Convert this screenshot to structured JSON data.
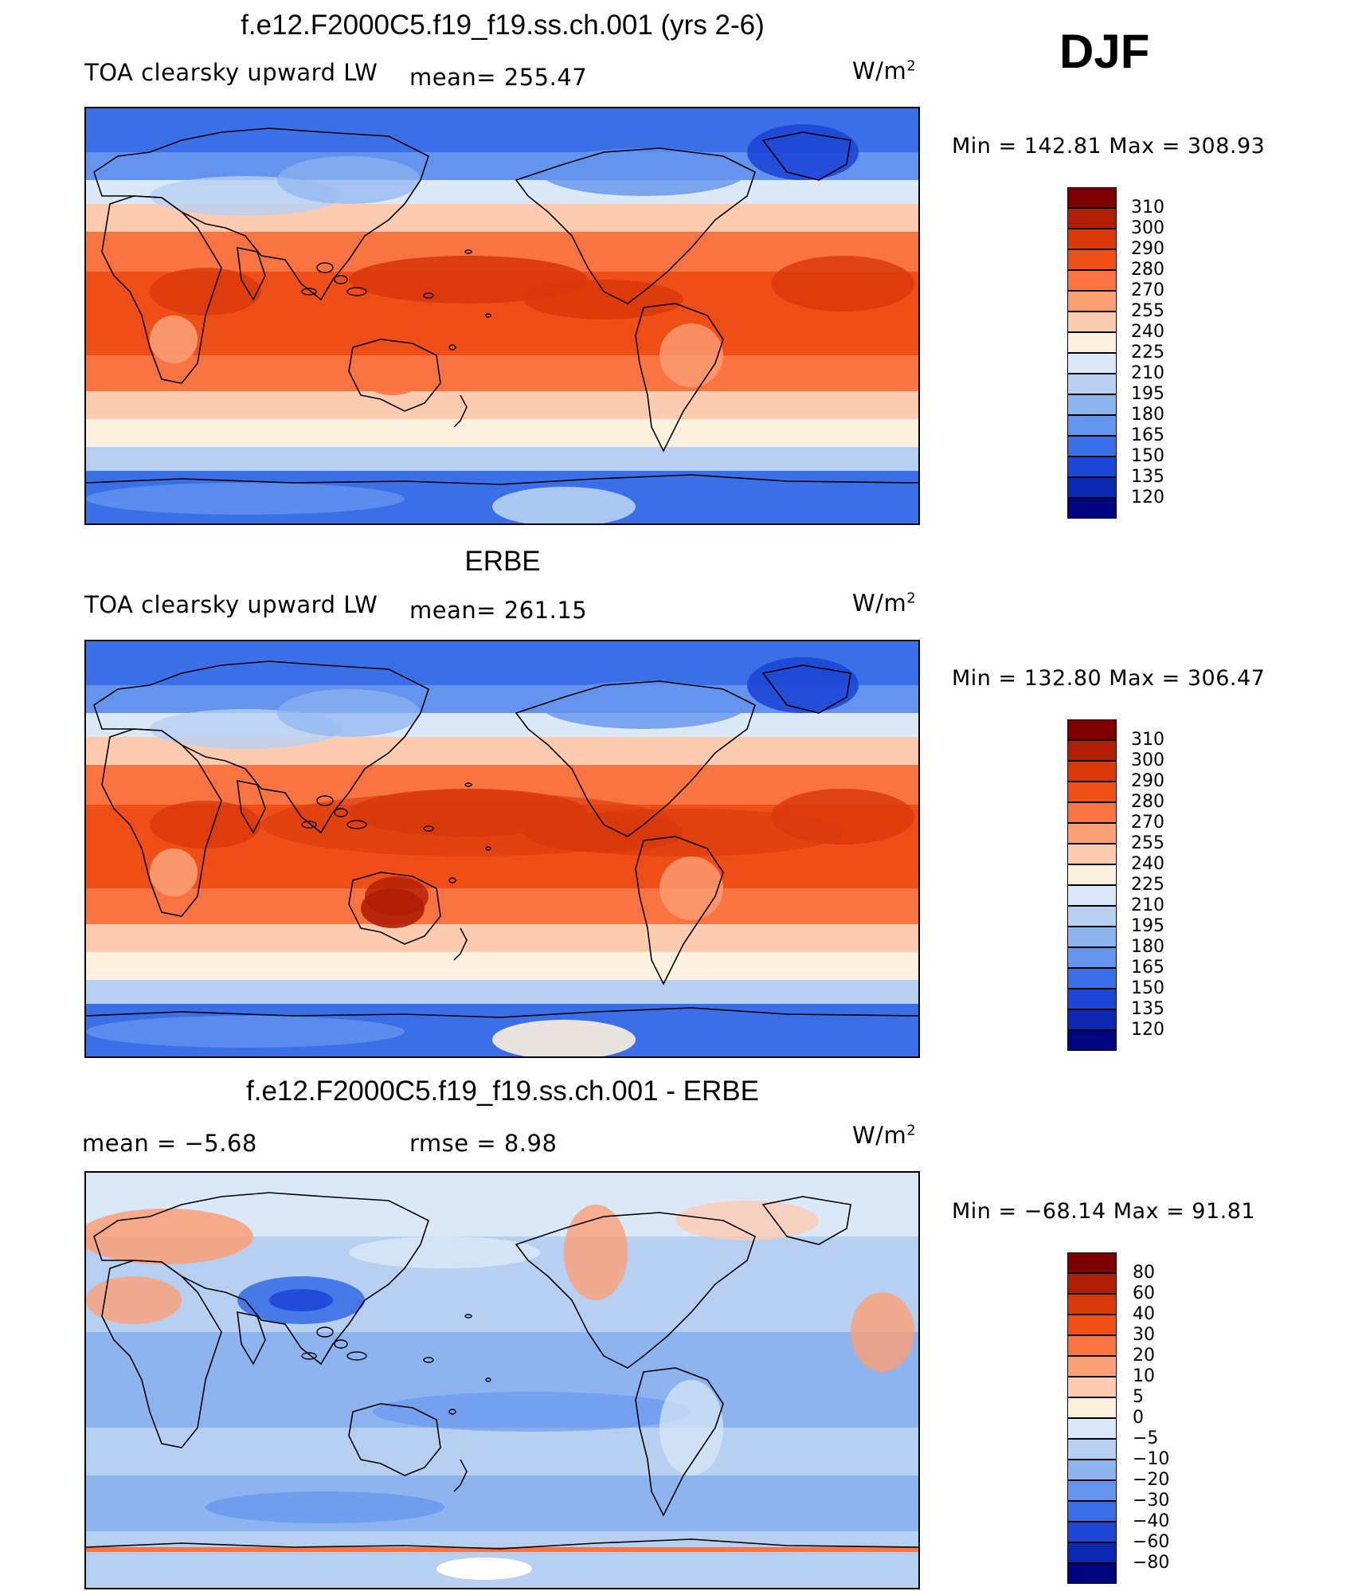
{
  "season": "DJF",
  "panels": [
    {
      "title": "f.e12.F2000C5.f19_f19.ss.ch.001 (yrs 2-6)",
      "left_label": "TOA clearsky upward LW",
      "stat1": "mean= 255.47",
      "units": "W/m",
      "units_sup": "2",
      "minmax": "Min  =  142.81  Max  =  308.93",
      "palette": "abs",
      "map_alt": "model"
    },
    {
      "title": "ERBE",
      "left_label": "TOA clearsky upward LW",
      "stat1": "mean= 261.15",
      "units": "W/m",
      "units_sup": "2",
      "minmax": "Min  =  132.80  Max  =  306.47",
      "palette": "abs",
      "map_alt": "obs"
    },
    {
      "title": "f.e12.F2000C5.f19_f19.ss.ch.001 - ERBE",
      "left_label": "mean =    −5.68",
      "stat1": "rmse =     8.98",
      "units": "W/m",
      "units_sup": "2",
      "minmax": "Min  =  −68.14  Max  =    91.81",
      "palette": "diff",
      "map_alt": "diff"
    }
  ],
  "colorbars": {
    "abs": {
      "labels": [
        "310",
        "300",
        "290",
        "280",
        "270",
        "255",
        "240",
        "225",
        "210",
        "195",
        "180",
        "165",
        "150",
        "135",
        "120"
      ],
      "colors": [
        "#7f0000",
        "#b01e05",
        "#d9380b",
        "#f04e17",
        "#f97440",
        "#fb9f75",
        "#fdcbb0",
        "#fdf0df",
        "#dbe8f7",
        "#b7d0f2",
        "#8db4ef",
        "#6494ee",
        "#3b6fe8",
        "#1d46d6",
        "#0c28b2",
        "#00067e"
      ]
    },
    "diff": {
      "labels": [
        "80",
        "60",
        "40",
        "30",
        "20",
        "10",
        "5",
        "0",
        "−5",
        "−10",
        "−20",
        "−30",
        "−40",
        "−60",
        "−80"
      ],
      "colors": [
        "#7f0000",
        "#b01e05",
        "#d9380b",
        "#f04e17",
        "#f97440",
        "#fb9f75",
        "#fdcbb0",
        "#fdf0df",
        "#dbe8f7",
        "#b7d0f2",
        "#8db4ef",
        "#6494ee",
        "#3b6fe8",
        "#1d46d6",
        "#0c28b2",
        "#00067e"
      ]
    }
  }
}
